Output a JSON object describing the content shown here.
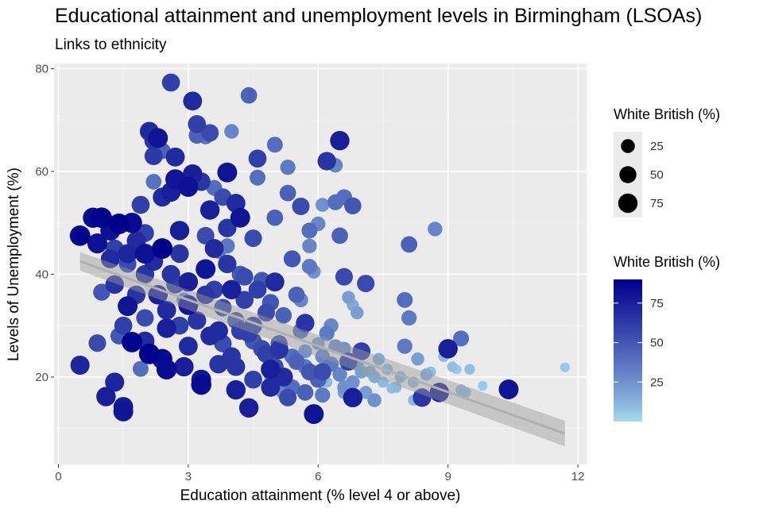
{
  "chart_data": {
    "type": "scatter",
    "title": "Educational attainment and unemployment levels in Birmingham (LSOAs)",
    "subtitle": "Links to ethnicity",
    "xlabel": "Education attainment (% level 4 or above)",
    "ylabel": "Levels of Unemployment (%)",
    "xlim": [
      -0.1,
      12.2
    ],
    "ylim": [
      3,
      81
    ],
    "x_ticks": [
      0,
      3,
      6,
      9,
      12
    ],
    "y_ticks": [
      20,
      40,
      60,
      80
    ],
    "grid": true,
    "background": "#ebebeb",
    "size_legend": {
      "title": "White British (%)",
      "breaks": [
        25,
        50,
        75
      ]
    },
    "color_legend": {
      "title": "White British (%)",
      "breaks": [
        25,
        50,
        75
      ],
      "low_color": "#a9dbee",
      "high_color": "#00008b",
      "range": [
        0,
        90
      ]
    },
    "trend": {
      "method": "linear",
      "x": [
        0.5,
        11.7
      ],
      "y": [
        42.5,
        9.0
      ],
      "band_halfwidth_start": 1.8,
      "band_halfwidth_end": 2.5,
      "line_color": "#b0b0b0",
      "band_color": "#999999"
    },
    "points": [
      [
        0.5,
        47.5,
        88
      ],
      [
        0.5,
        22.3,
        72
      ],
      [
        0.8,
        51.0,
        85
      ],
      [
        0.9,
        46.0,
        82
      ],
      [
        0.9,
        26.6,
        55
      ],
      [
        1.0,
        36.5,
        50
      ],
      [
        1.0,
        51.0,
        88
      ],
      [
        1.1,
        16.2,
        75
      ],
      [
        1.2,
        48.5,
        82
      ],
      [
        1.2,
        43.0,
        70
      ],
      [
        1.3,
        19.0,
        72
      ],
      [
        1.3,
        38.0,
        66
      ],
      [
        1.4,
        49.8,
        90
      ],
      [
        1.4,
        28.0,
        50
      ],
      [
        1.5,
        14.2,
        78
      ],
      [
        1.5,
        13.3,
        80
      ],
      [
        1.6,
        33.8,
        80
      ],
      [
        1.6,
        44.0,
        72
      ],
      [
        1.7,
        50.0,
        85
      ],
      [
        1.7,
        26.8,
        88
      ],
      [
        1.8,
        36.0,
        65
      ],
      [
        1.8,
        46.5,
        70
      ],
      [
        1.9,
        21.6,
        40
      ],
      [
        1.9,
        53.5,
        60
      ],
      [
        2.0,
        44.0,
        82
      ],
      [
        2.0,
        48.0,
        60
      ],
      [
        2.0,
        31.5,
        55
      ],
      [
        2.1,
        67.8,
        70
      ],
      [
        2.1,
        24.5,
        90
      ],
      [
        2.2,
        66.0,
        65
      ],
      [
        2.2,
        58.0,
        38
      ],
      [
        2.2,
        63.0,
        62
      ],
      [
        2.3,
        66.5,
        80
      ],
      [
        2.4,
        55.0,
        70
      ],
      [
        2.4,
        64.0,
        45
      ],
      [
        2.4,
        45.0,
        90
      ],
      [
        2.5,
        21.5,
        85
      ],
      [
        2.5,
        29.5,
        75
      ],
      [
        2.6,
        77.3,
        60
      ],
      [
        2.6,
        56.0,
        75
      ],
      [
        2.7,
        38.0,
        60
      ],
      [
        2.7,
        58.5,
        80
      ],
      [
        2.7,
        62.8,
        70
      ],
      [
        2.8,
        48.5,
        75
      ],
      [
        2.8,
        44.0,
        65
      ],
      [
        2.9,
        35.0,
        30
      ],
      [
        3.0,
        57.0,
        82
      ],
      [
        3.0,
        26.0,
        70
      ],
      [
        3.1,
        73.7,
        70
      ],
      [
        3.1,
        59.5,
        75
      ],
      [
        3.2,
        69.2,
        60
      ],
      [
        3.2,
        67.0,
        45
      ],
      [
        3.3,
        58.0,
        65
      ],
      [
        3.3,
        19.5,
        80
      ],
      [
        3.4,
        47.5,
        55
      ],
      [
        3.4,
        66.8,
        38
      ],
      [
        3.4,
        41.0,
        80
      ],
      [
        3.5,
        67.5,
        55
      ],
      [
        3.5,
        52.5,
        75
      ],
      [
        3.6,
        56.8,
        40
      ],
      [
        3.6,
        37.0,
        60
      ],
      [
        3.7,
        44.5,
        35
      ],
      [
        3.7,
        29.0,
        70
      ],
      [
        3.8,
        55.0,
        55
      ],
      [
        3.9,
        59.8,
        80
      ],
      [
        3.9,
        49.0,
        65
      ],
      [
        3.9,
        45.5,
        35
      ],
      [
        4.0,
        67.8,
        30
      ],
      [
        4.0,
        37.0,
        75
      ],
      [
        4.1,
        53.8,
        70
      ],
      [
        4.1,
        22.0,
        65
      ],
      [
        4.2,
        51.0,
        80
      ],
      [
        4.2,
        40.0,
        50
      ],
      [
        4.3,
        35.0,
        60
      ],
      [
        4.4,
        74.8,
        45
      ],
      [
        4.4,
        14.0,
        75
      ],
      [
        4.5,
        47.0,
        55
      ],
      [
        4.5,
        30.0,
        60
      ],
      [
        4.6,
        62.5,
        60
      ],
      [
        4.6,
        58.8,
        40
      ],
      [
        4.7,
        38.8,
        50
      ],
      [
        4.8,
        32.5,
        55
      ],
      [
        4.9,
        20.3,
        25
      ],
      [
        4.9,
        21.5,
        75
      ],
      [
        5.0,
        65.2,
        40
      ],
      [
        5.0,
        51.0,
        45
      ],
      [
        5.0,
        38.5,
        70
      ],
      [
        5.1,
        25.3,
        65
      ],
      [
        5.2,
        17.0,
        30
      ],
      [
        5.3,
        60.8,
        35
      ],
      [
        5.3,
        55.8,
        45
      ],
      [
        5.4,
        43.0,
        50
      ],
      [
        5.4,
        18.0,
        40
      ],
      [
        5.5,
        36.0,
        45
      ],
      [
        5.6,
        53.2,
        55
      ],
      [
        5.6,
        35.0,
        30
      ],
      [
        5.7,
        30.5,
        65
      ],
      [
        5.7,
        25.0,
        25
      ],
      [
        5.8,
        48.5,
        40
      ],
      [
        5.8,
        45.5,
        30
      ],
      [
        5.8,
        41.5,
        35
      ],
      [
        5.9,
        40.5,
        25
      ],
      [
        5.9,
        12.8,
        80
      ],
      [
        6.0,
        49.8,
        30
      ],
      [
        6.0,
        26.5,
        20
      ],
      [
        6.1,
        53.5,
        25
      ],
      [
        6.1,
        21.0,
        55
      ],
      [
        6.2,
        62.0,
        65
      ],
      [
        6.2,
        19.0,
        10
      ],
      [
        6.3,
        30.0,
        30
      ],
      [
        6.4,
        61.2,
        30
      ],
      [
        6.4,
        54.0,
        40
      ],
      [
        6.5,
        66.0,
        75
      ],
      [
        6.5,
        47.5,
        45
      ],
      [
        6.6,
        55.0,
        40
      ],
      [
        6.6,
        39.5,
        55
      ],
      [
        6.6,
        17.0,
        20
      ],
      [
        6.7,
        35.5,
        20
      ],
      [
        6.7,
        23.0,
        60
      ],
      [
        6.8,
        53.3,
        50
      ],
      [
        6.8,
        34.0,
        15
      ],
      [
        6.8,
        16.0,
        75
      ],
      [
        6.9,
        32.5,
        20
      ],
      [
        7.0,
        25.0,
        60
      ],
      [
        7.1,
        38.2,
        55
      ],
      [
        7.2,
        21.0,
        15
      ],
      [
        7.3,
        15.5,
        25
      ],
      [
        7.4,
        23.5,
        15
      ],
      [
        7.5,
        19.0,
        10
      ],
      [
        7.6,
        21.5,
        10
      ],
      [
        7.7,
        17.8,
        8
      ],
      [
        7.8,
        18.0,
        10
      ],
      [
        7.9,
        20.0,
        12
      ],
      [
        8.0,
        35.0,
        40
      ],
      [
        8.0,
        26.0,
        35
      ],
      [
        8.1,
        45.8,
        45
      ],
      [
        8.1,
        31.5,
        35
      ],
      [
        8.2,
        19.0,
        10
      ],
      [
        8.2,
        15.5,
        10
      ],
      [
        8.3,
        23.5,
        20
      ],
      [
        8.4,
        16.0,
        65
      ],
      [
        8.5,
        20.5,
        15
      ],
      [
        8.6,
        21.0,
        8
      ],
      [
        8.7,
        48.8,
        30
      ],
      [
        8.8,
        17.0,
        75
      ],
      [
        8.9,
        24.0,
        10
      ],
      [
        9.0,
        25.5,
        75
      ],
      [
        9.1,
        22.0,
        8
      ],
      [
        9.2,
        21.5,
        5
      ],
      [
        9.3,
        17.5,
        10
      ],
      [
        9.3,
        27.5,
        40
      ],
      [
        9.4,
        17.0,
        10
      ],
      [
        9.5,
        21.5,
        8
      ],
      [
        9.8,
        18.3,
        5
      ],
      [
        10.4,
        17.6,
        80
      ],
      [
        11.7,
        21.9,
        5
      ],
      [
        1.3,
        45.0,
        60
      ],
      [
        1.6,
        42.0,
        55
      ],
      [
        2.0,
        40.0,
        65
      ],
      [
        2.3,
        36.0,
        75
      ],
      [
        2.5,
        33.0,
        70
      ],
      [
        2.8,
        30.0,
        60
      ],
      [
        3.0,
        34.0,
        80
      ],
      [
        3.2,
        31.0,
        65
      ],
      [
        3.5,
        28.0,
        70
      ],
      [
        3.8,
        26.5,
        55
      ],
      [
        4.0,
        24.0,
        65
      ],
      [
        4.2,
        29.0,
        60
      ],
      [
        4.5,
        27.0,
        50
      ],
      [
        4.8,
        24.5,
        60
      ],
      [
        5.0,
        22.0,
        55
      ],
      [
        5.2,
        20.0,
        70
      ],
      [
        5.5,
        23.0,
        45
      ],
      [
        5.8,
        21.0,
        50
      ],
      [
        6.0,
        19.5,
        45
      ],
      [
        6.3,
        22.5,
        35
      ],
      [
        6.5,
        20.5,
        30
      ],
      [
        6.8,
        19.0,
        25
      ],
      [
        7.0,
        21.0,
        20
      ],
      [
        2.2,
        42.5,
        70
      ],
      [
        2.6,
        40.0,
        65
      ],
      [
        3.0,
        38.5,
        75
      ],
      [
        3.4,
        36.0,
        65
      ],
      [
        3.8,
        33.5,
        55
      ],
      [
        4.1,
        31.0,
        50
      ],
      [
        4.4,
        28.5,
        60
      ],
      [
        4.7,
        25.5,
        55
      ],
      [
        5.1,
        26.5,
        50
      ],
      [
        5.4,
        24.0,
        40
      ],
      [
        5.7,
        22.0,
        35
      ],
      [
        6.1,
        24.0,
        30
      ],
      [
        6.4,
        26.0,
        25
      ],
      [
        6.9,
        22.5,
        20
      ],
      [
        7.3,
        20.0,
        15
      ],
      [
        3.6,
        45.0,
        70
      ],
      [
        3.9,
        42.0,
        65
      ],
      [
        4.3,
        39.5,
        55
      ],
      [
        4.6,
        37.0,
        60
      ],
      [
        4.9,
        34.5,
        50
      ],
      [
        5.2,
        32.0,
        45
      ],
      [
        5.6,
        29.0,
        40
      ],
      [
        6.2,
        28.5,
        35
      ],
      [
        6.6,
        25.5,
        25
      ],
      [
        1.5,
        30.0,
        60
      ],
      [
        2.0,
        27.0,
        70
      ],
      [
        2.4,
        23.5,
        85
      ],
      [
        2.9,
        22.0,
        75
      ],
      [
        3.3,
        18.5,
        85
      ],
      [
        3.7,
        22.5,
        65
      ],
      [
        4.1,
        17.5,
        75
      ],
      [
        4.5,
        19.5,
        60
      ],
      [
        4.9,
        18.0,
        70
      ],
      [
        5.3,
        16.0,
        55
      ],
      [
        5.7,
        17.0,
        45
      ],
      [
        6.1,
        16.5,
        35
      ],
      [
        6.6,
        18.0,
        25
      ],
      [
        7.1,
        17.0,
        20
      ]
    ]
  }
}
